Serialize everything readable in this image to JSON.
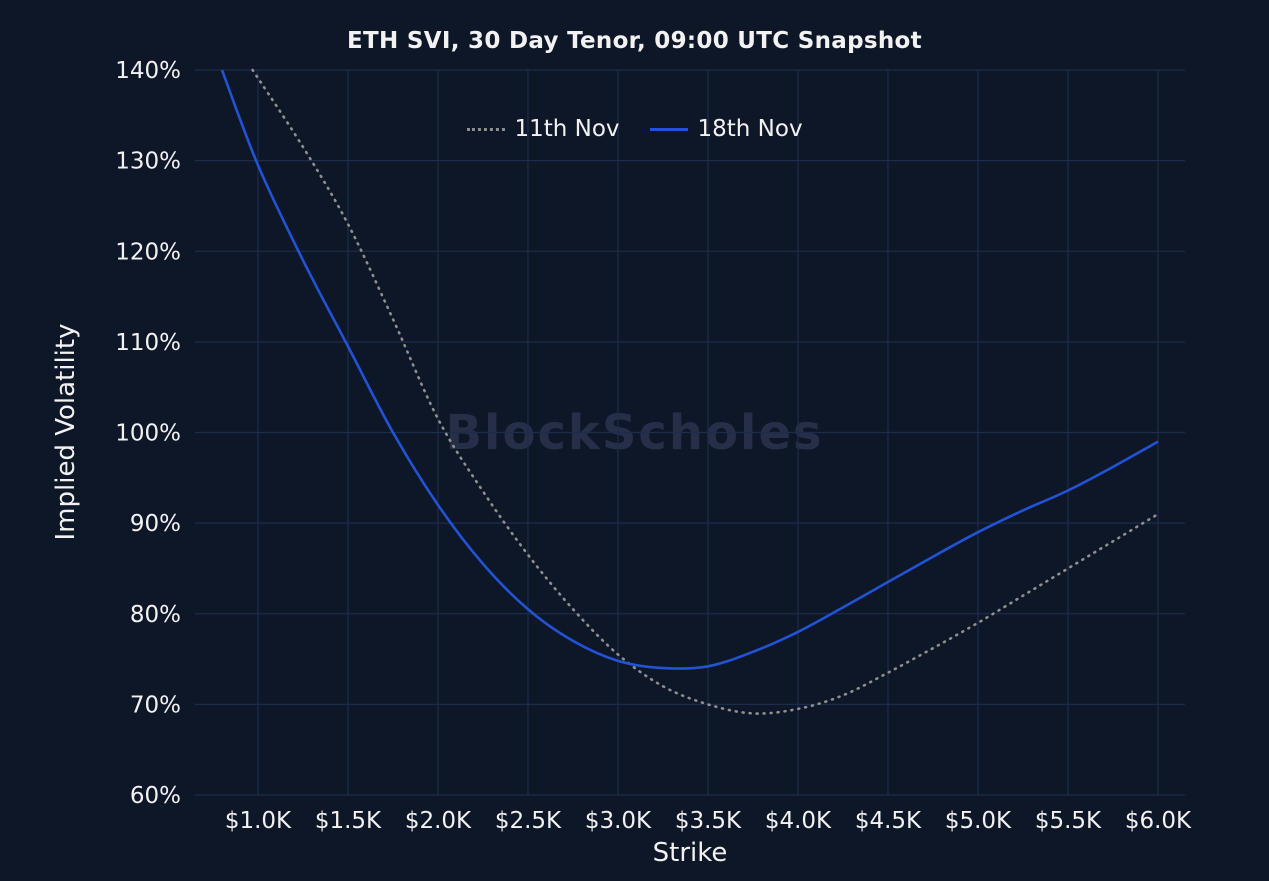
{
  "chart_data": {
    "type": "line",
    "title": "ETH SVI, 30 Day Tenor, 09:00 UTC Snapshot",
    "xlabel": "Strike",
    "ylabel": "Implied Volatility",
    "watermark": "BlockScholes",
    "xlim": [
      0.65,
      6.15
    ],
    "ylim": [
      60,
      140
    ],
    "grid": true,
    "legend_position": "top-center",
    "x_ticks": [
      {
        "label": "$1.0K",
        "value": 1.0
      },
      {
        "label": "$1.5K",
        "value": 1.5
      },
      {
        "label": "$2.0K",
        "value": 2.0
      },
      {
        "label": "$2.5K",
        "value": 2.5
      },
      {
        "label": "$3.0K",
        "value": 3.0
      },
      {
        "label": "$3.5K",
        "value": 3.5
      },
      {
        "label": "$4.0K",
        "value": 4.0
      },
      {
        "label": "$4.5K",
        "value": 4.5
      },
      {
        "label": "$5.0K",
        "value": 5.0
      },
      {
        "label": "$5.5K",
        "value": 5.5
      },
      {
        "label": "$6.0K",
        "value": 6.0
      }
    ],
    "y_ticks": [
      {
        "label": "60%",
        "value": 60
      },
      {
        "label": "70%",
        "value": 70
      },
      {
        "label": "80%",
        "value": 80
      },
      {
        "label": "90%",
        "value": 90
      },
      {
        "label": "100%",
        "value": 100
      },
      {
        "label": "110%",
        "value": 110
      },
      {
        "label": "120%",
        "value": 120
      },
      {
        "label": "130%",
        "value": 130
      },
      {
        "label": "140%",
        "value": 140
      }
    ],
    "colors": {
      "background": "#0e1728",
      "grid": "#1d2c4a",
      "text": "#f2f2f2",
      "watermark": "#262f47"
    },
    "series": [
      {
        "name": "11th Nov",
        "color": "#8f8f8f",
        "style": "dotted",
        "points": [
          [
            0.97,
            140
          ],
          [
            1.25,
            131.5
          ],
          [
            1.5,
            123
          ],
          [
            1.75,
            112.5
          ],
          [
            2.0,
            101.5
          ],
          [
            2.25,
            93.5
          ],
          [
            2.5,
            86.5
          ],
          [
            2.75,
            80.5
          ],
          [
            3.0,
            75.5
          ],
          [
            3.25,
            72
          ],
          [
            3.5,
            70
          ],
          [
            3.75,
            69
          ],
          [
            4.0,
            69.5
          ],
          [
            4.25,
            71
          ],
          [
            4.5,
            73.5
          ],
          [
            4.75,
            76.2
          ],
          [
            5.0,
            79
          ],
          [
            5.25,
            82
          ],
          [
            5.5,
            85
          ],
          [
            5.75,
            88
          ],
          [
            6.0,
            91
          ]
        ]
      },
      {
        "name": "18th Nov",
        "color": "#2153d4",
        "style": "solid",
        "points": [
          [
            0.8,
            140
          ],
          [
            1.0,
            129.5
          ],
          [
            1.25,
            119
          ],
          [
            1.5,
            109.5
          ],
          [
            1.75,
            100
          ],
          [
            2.0,
            92
          ],
          [
            2.25,
            85.5
          ],
          [
            2.5,
            80.5
          ],
          [
            2.75,
            77
          ],
          [
            3.0,
            74.8
          ],
          [
            3.25,
            74
          ],
          [
            3.5,
            74.2
          ],
          [
            3.75,
            75.8
          ],
          [
            4.0,
            78
          ],
          [
            4.25,
            80.7
          ],
          [
            4.5,
            83.5
          ],
          [
            4.75,
            86.3
          ],
          [
            5.0,
            89
          ],
          [
            5.25,
            91.4
          ],
          [
            5.5,
            93.6
          ],
          [
            5.75,
            96.2
          ],
          [
            6.0,
            99
          ]
        ]
      }
    ]
  }
}
